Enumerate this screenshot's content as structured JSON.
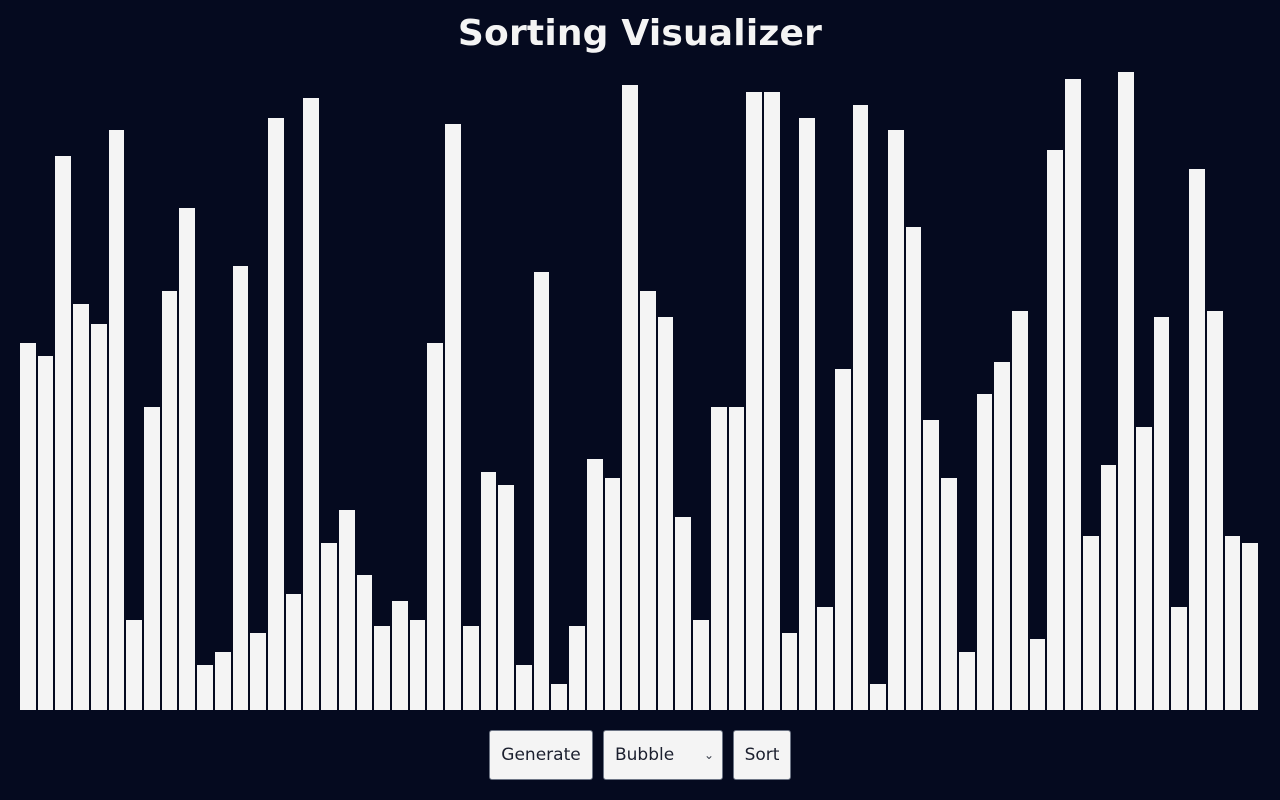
{
  "page": {
    "title": "Sorting Visualizer"
  },
  "controls": {
    "generate_label": "Generate",
    "algorithm": {
      "selected": "Bubble"
    },
    "sort_label": "Sort"
  },
  "colors": {
    "background": "#050a1f",
    "bar": "#f4f4f4",
    "button_bg": "#f4f4f4",
    "button_text": "#1b1f2e"
  },
  "array": {
    "count": 70,
    "max_value": 100,
    "values": [
      57,
      55,
      86,
      63,
      60,
      90,
      14,
      47,
      65,
      78,
      7,
      9,
      69,
      12,
      92,
      18,
      95,
      26,
      31,
      21,
      13,
      17,
      14,
      57,
      91,
      13,
      37,
      35,
      7,
      68,
      4,
      13,
      39,
      36,
      97,
      65,
      61,
      30,
      14,
      47,
      47,
      96,
      96,
      12,
      92,
      16,
      53,
      94,
      4,
      90,
      75,
      45,
      36,
      9,
      49,
      54,
      62,
      11,
      87,
      98,
      27,
      38,
      99,
      44,
      61,
      16,
      84,
      62,
      27,
      26
    ]
  }
}
